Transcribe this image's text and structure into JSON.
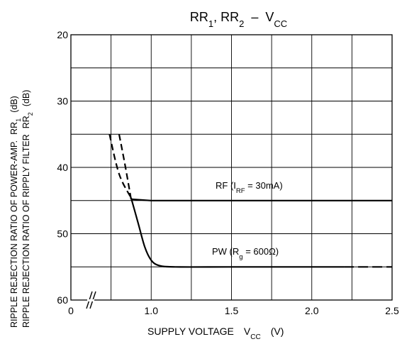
{
  "chart_data": {
    "type": "line",
    "title": "RR1, RR2 – VCC",
    "title_parts": {
      "a": "RR",
      "a_sub": "1",
      "sep": ",  RR",
      "b_sub": "2",
      "dash": "–",
      "v": "V",
      "v_sub": "CC"
    },
    "xlabel": "SUPPLY VOLTAGE   VCC   (V)",
    "xlabel_parts": {
      "main": "SUPPLY VOLTAGE",
      "v": "V",
      "v_sub": "CC",
      "unit": "(V)"
    },
    "ylabel_lines": [
      "RIPPLE REJECTION RATIO OF POWER-AMP.  RR1  (dB)",
      "RIPPLE REJECTION RATIO OF RIPPLY FILTER  RR2  (dB)"
    ],
    "ylabel_parts": {
      "line1_main": "RIPPLE REJECTION RATIO OF POWER-AMP.",
      "line1_rr": "RR",
      "line1_sub": "1",
      "line2_main": "RIPPLE REJECTION RATIO OF RIPPLY FILTER",
      "line2_rr": "RR",
      "line2_sub": "2",
      "unit": "(dB)"
    },
    "x_ticks": [
      "0",
      "1.0",
      "1.5",
      "2.0",
      "2.5"
    ],
    "y_ticks": [
      "20",
      "30",
      "40",
      "50",
      "60"
    ],
    "xlim": [
      0.5,
      2.5
    ],
    "ylim": [
      20,
      60
    ],
    "y_inverted": true,
    "x_axis_break_after_zero": true,
    "grid": true,
    "series": [
      {
        "name": "RF (IRF = 30mA)",
        "label_parts": {
          "pre": "RF  (I",
          "sub": "RF",
          "post": " = 30mA)"
        },
        "solid": [
          [
            0.875,
            44.8
          ],
          [
            1.0,
            45.0
          ],
          [
            1.5,
            45.0
          ],
          [
            2.0,
            45.0
          ],
          [
            2.5,
            45.0
          ]
        ],
        "dashed": [
          [
            0.8,
            35.0
          ],
          [
            0.84,
            40.0
          ],
          [
            0.875,
            44.8
          ]
        ]
      },
      {
        "name": "PW (Rg = 600Ω)",
        "label_parts": {
          "pre": "PW  (R",
          "sub": "g",
          "post": " = 600Ω)"
        },
        "solid": [
          [
            0.875,
            44.6
          ],
          [
            0.92,
            48.5
          ],
          [
            0.96,
            52.0
          ],
          [
            1.0,
            54.0
          ],
          [
            1.05,
            54.8
          ],
          [
            1.15,
            55.0
          ],
          [
            1.5,
            55.0
          ],
          [
            2.0,
            55.0
          ],
          [
            2.2,
            55.0
          ]
        ],
        "dashed_left": [
          [
            0.74,
            35.0
          ],
          [
            0.8,
            41.0
          ],
          [
            0.875,
            44.6
          ]
        ],
        "dashed_right": [
          [
            2.2,
            55.0
          ],
          [
            2.5,
            55.0
          ]
        ]
      }
    ]
  }
}
